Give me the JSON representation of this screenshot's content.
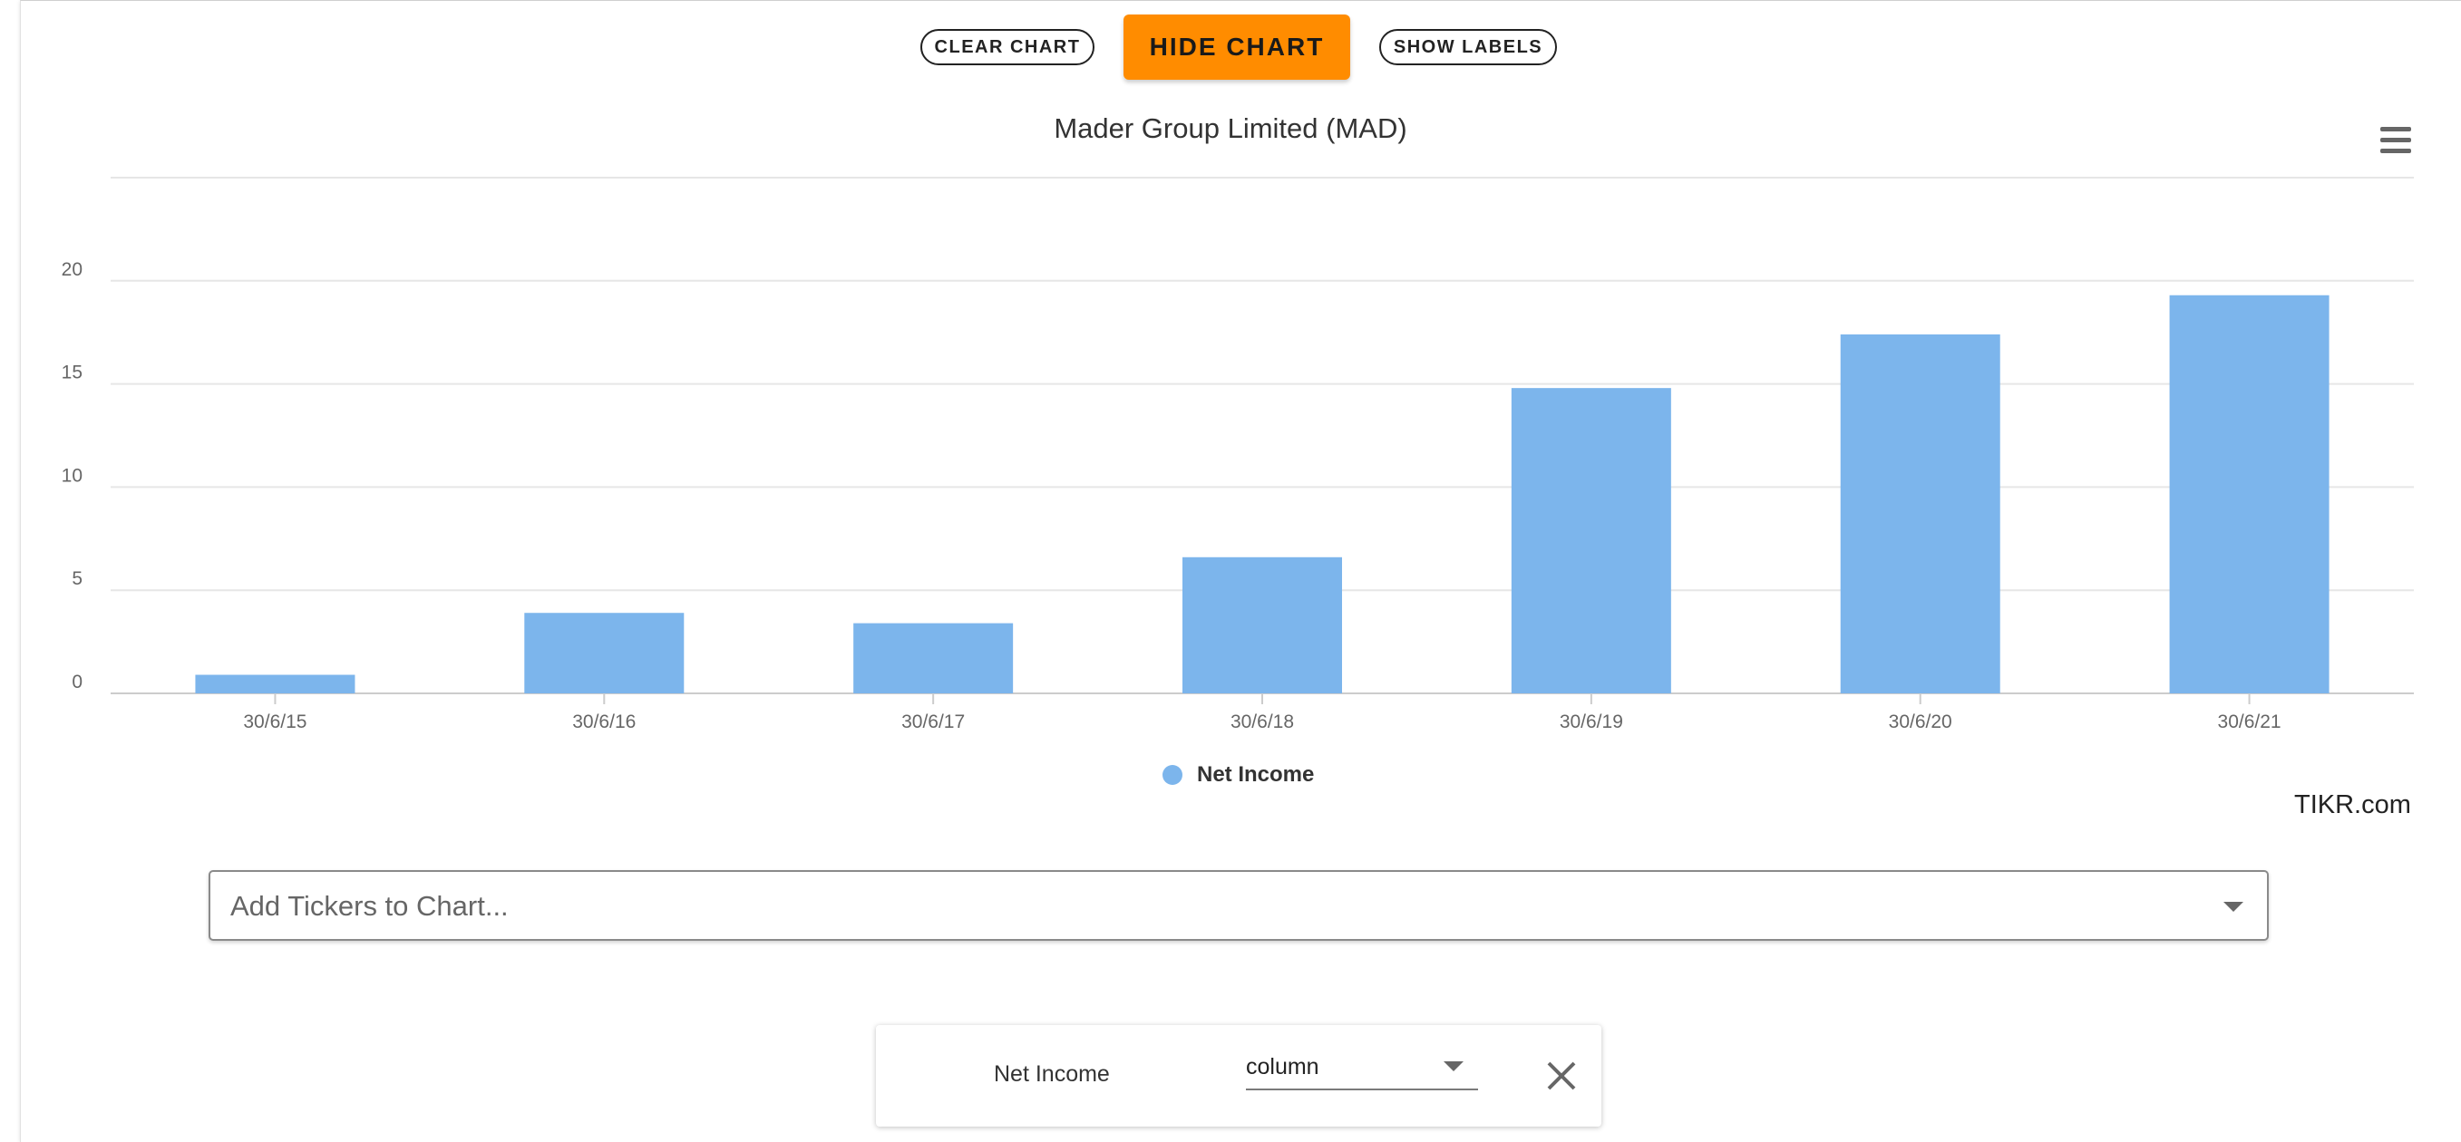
{
  "toolbar": {
    "clear_label": "CLEAR CHART",
    "hide_label": "HIDE CHART",
    "show_labels_label": "SHOW LABELS",
    "hide_color": "#ff8c00"
  },
  "chart_menu": {
    "icon": "hamburger-menu-icon"
  },
  "chart_data": {
    "type": "bar",
    "title": "Mader Group Limited (MAD)",
    "categories": [
      "30/6/15",
      "30/6/16",
      "30/6/17",
      "30/6/18",
      "30/6/19",
      "30/6/20",
      "30/6/21"
    ],
    "series": [
      {
        "name": "Net Income",
        "values": [
          0.9,
          3.9,
          3.4,
          6.6,
          14.8,
          17.4,
          19.3
        ],
        "color": "#7cb5ec"
      }
    ],
    "ylim": [
      0,
      25
    ],
    "yticks": [
      0,
      5,
      10,
      15,
      20
    ],
    "xlabel": "",
    "ylabel": "",
    "grid": true,
    "legend_position": "bottom-center"
  },
  "credit": "TIKR.com",
  "ticker_search": {
    "placeholder": "Add Tickers to Chart...",
    "value": ""
  },
  "series_config": {
    "name": "Net Income",
    "type_value": "column",
    "close_icon": "close-icon"
  }
}
